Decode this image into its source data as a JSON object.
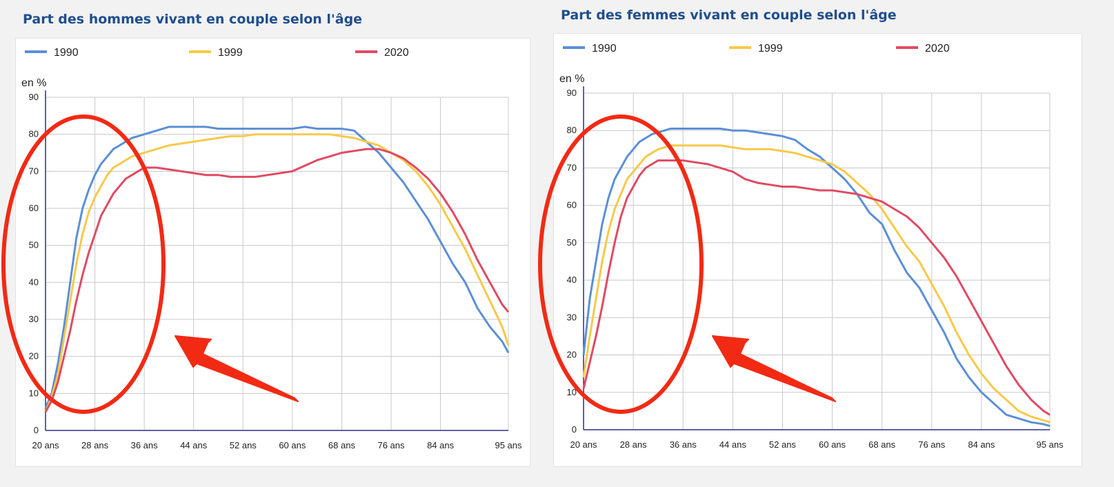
{
  "colors": {
    "1990": "#5b8fd6",
    "1999": "#f7c948",
    "2020": "#e04a63",
    "annotation": "#f22a14"
  },
  "chart_data": [
    {
      "type": "line",
      "title": "Part des hommes vivant en couple selon l'âge",
      "ylabel": "en %",
      "xlabel": "",
      "ylim": [
        0,
        90
      ],
      "xlim": [
        20,
        95
      ],
      "yticks": [
        "0",
        "10",
        "20",
        "30",
        "40",
        "50",
        "60",
        "70",
        "80",
        "90"
      ],
      "xtick_values": [
        20,
        28,
        36,
        44,
        52,
        60,
        68,
        76,
        84,
        95
      ],
      "xtick_labels": [
        "20 ans",
        "28 ans",
        "36 ans",
        "44 ans",
        "52 ans",
        "60 ans",
        "68 ans",
        "76 ans",
        "84 ans",
        "95 ans"
      ],
      "grid": true,
      "legend": "top",
      "series": [
        {
          "name": "1990",
          "x": [
            20,
            21,
            22,
            23,
            24,
            25,
            26,
            27,
            28,
            29,
            30,
            31,
            32,
            33,
            34,
            35,
            36,
            38,
            40,
            42,
            44,
            46,
            48,
            50,
            52,
            54,
            56,
            58,
            60,
            62,
            64,
            66,
            68,
            70,
            72,
            74,
            76,
            78,
            80,
            82,
            84,
            86,
            88,
            90,
            92,
            94,
            95
          ],
          "values": [
            6,
            10,
            18,
            28,
            40,
            52,
            60,
            65,
            69,
            72,
            74,
            76,
            77,
            78,
            79,
            79.5,
            80,
            81,
            82,
            82,
            82,
            82,
            81.5,
            81.5,
            81.5,
            81.5,
            81.5,
            81.5,
            81.5,
            82,
            81.5,
            81.5,
            81.5,
            81,
            78,
            75,
            71,
            67,
            62,
            57,
            51,
            45,
            40,
            33,
            28,
            24,
            21
          ]
        },
        {
          "name": "1999",
          "x": [
            20,
            21,
            22,
            23,
            24,
            25,
            26,
            27,
            28,
            29,
            30,
            31,
            32,
            33,
            34,
            35,
            36,
            38,
            40,
            42,
            44,
            46,
            48,
            50,
            52,
            54,
            56,
            58,
            60,
            62,
            64,
            66,
            68,
            70,
            72,
            74,
            76,
            78,
            80,
            82,
            84,
            86,
            88,
            90,
            92,
            94,
            95
          ],
          "values": [
            5,
            9,
            15,
            25,
            35,
            45,
            53,
            59,
            63,
            66,
            69,
            71,
            72,
            73,
            74,
            74.5,
            75,
            76,
            77,
            77.5,
            78,
            78.5,
            79,
            79.5,
            79.5,
            80,
            80,
            80,
            80,
            80,
            80,
            80,
            79.5,
            79,
            78,
            77,
            75,
            73,
            70,
            66,
            61,
            55,
            49,
            42,
            35,
            28,
            23
          ]
        },
        {
          "name": "2020",
          "x": [
            20,
            21,
            22,
            23,
            24,
            25,
            26,
            27,
            28,
            29,
            30,
            31,
            32,
            33,
            34,
            35,
            36,
            38,
            40,
            42,
            44,
            46,
            48,
            50,
            52,
            54,
            56,
            58,
            60,
            62,
            64,
            66,
            68,
            70,
            72,
            74,
            76,
            78,
            80,
            82,
            84,
            86,
            88,
            90,
            92,
            94,
            95
          ],
          "values": [
            5,
            8,
            13,
            20,
            27,
            35,
            42,
            48,
            53,
            58,
            61,
            64,
            66,
            68,
            69,
            70,
            71,
            71,
            70.5,
            70,
            69.5,
            69,
            69,
            68.5,
            68.5,
            68.5,
            69,
            69.5,
            70,
            71.5,
            73,
            74,
            75,
            75.5,
            76,
            76,
            75,
            73.5,
            71,
            68,
            64,
            59,
            53,
            46,
            40,
            34,
            32
          ]
        }
      ]
    },
    {
      "type": "line",
      "title": "Part des femmes vivant en couple selon l'âge",
      "ylabel": "en %",
      "xlabel": "",
      "ylim": [
        0,
        90
      ],
      "xlim": [
        20,
        95
      ],
      "yticks": [
        "0",
        "10",
        "20",
        "30",
        "40",
        "50",
        "60",
        "70",
        "80",
        "90"
      ],
      "xtick_values": [
        20,
        28,
        36,
        44,
        52,
        60,
        68,
        76,
        84,
        95
      ],
      "xtick_labels": [
        "20 ans",
        "28 ans",
        "36 ans",
        "44 ans",
        "52 ans",
        "60 ans",
        "68 ans",
        "76 ans",
        "84 ans",
        "95 ans"
      ],
      "grid": true,
      "legend": "top",
      "series": [
        {
          "name": "1990",
          "x": [
            20,
            21,
            22,
            23,
            24,
            25,
            26,
            27,
            28,
            29,
            30,
            31,
            32,
            33,
            34,
            35,
            36,
            38,
            40,
            42,
            44,
            46,
            48,
            50,
            52,
            54,
            56,
            58,
            60,
            62,
            64,
            66,
            68,
            70,
            72,
            74,
            76,
            78,
            80,
            82,
            84,
            86,
            88,
            90,
            92,
            94,
            95
          ],
          "values": [
            20,
            35,
            45,
            55,
            62,
            67,
            70,
            73,
            75,
            77,
            78,
            79,
            79.5,
            80,
            80.5,
            80.5,
            80.5,
            80.5,
            80.5,
            80.5,
            80,
            80,
            79.5,
            79,
            78.5,
            77.5,
            75,
            73,
            70,
            67,
            63,
            58,
            55,
            48,
            42,
            38,
            32,
            26,
            19,
            14,
            10,
            7,
            4,
            3,
            2,
            1.5,
            1
          ]
        },
        {
          "name": "1999",
          "x": [
            20,
            21,
            22,
            23,
            24,
            25,
            26,
            27,
            28,
            29,
            30,
            31,
            32,
            33,
            34,
            35,
            36,
            38,
            40,
            42,
            44,
            46,
            48,
            50,
            52,
            54,
            56,
            58,
            60,
            62,
            64,
            66,
            68,
            70,
            72,
            74,
            76,
            78,
            80,
            82,
            84,
            86,
            88,
            90,
            92,
            94,
            95
          ],
          "values": [
            14,
            25,
            35,
            45,
            53,
            59,
            63,
            67,
            69,
            71,
            73,
            74,
            75,
            75.5,
            76,
            76,
            76,
            76,
            76,
            76,
            75.5,
            75,
            75,
            75,
            74.5,
            74,
            73,
            72,
            71,
            69,
            66,
            63,
            59,
            54,
            49,
            45,
            39,
            33,
            26,
            20,
            15,
            11,
            8,
            5,
            3.5,
            2.5,
            2
          ]
        },
        {
          "name": "2020",
          "x": [
            20,
            21,
            22,
            23,
            24,
            25,
            26,
            27,
            28,
            29,
            30,
            31,
            32,
            33,
            34,
            35,
            36,
            38,
            40,
            42,
            44,
            46,
            48,
            50,
            52,
            54,
            56,
            58,
            60,
            62,
            64,
            66,
            68,
            70,
            72,
            74,
            76,
            78,
            80,
            82,
            84,
            86,
            88,
            90,
            92,
            94,
            95
          ],
          "values": [
            11,
            18,
            25,
            33,
            42,
            50,
            57,
            62,
            65,
            68,
            70,
            71,
            72,
            72,
            72,
            72,
            72,
            71.5,
            71,
            70,
            69,
            67,
            66,
            65.5,
            65,
            65,
            64.5,
            64,
            64,
            63.5,
            63,
            62,
            61,
            59,
            57,
            54,
            50,
            46,
            41,
            35,
            29,
            23,
            17,
            12,
            8,
            5,
            4
          ]
        }
      ]
    }
  ]
}
